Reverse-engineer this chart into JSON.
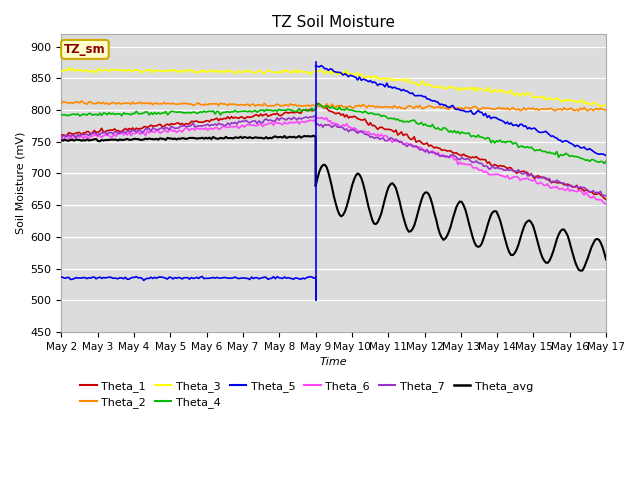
{
  "title": "TZ Soil Moisture",
  "ylabel": "Soil Moisture (mV)",
  "xlabel": "Time",
  "ylim": [
    450,
    920
  ],
  "background_color": "#ffffff",
  "plot_bg_color": "#dcdcdc",
  "legend_box_text": "TZ_sm",
  "legend_box_color": "#ffffcc",
  "legend_box_border": "#ccaa00",
  "x_ticks_labels": [
    "May 2",
    "May 3",
    "May 4",
    "May 5",
    "May 6",
    "May 7",
    "May 8",
    "May 9",
    "May 10",
    "May 11",
    "May 12",
    "May 13",
    "May 14",
    "May 15",
    "May 16",
    "May 17"
  ],
  "series": {
    "Theta_1": {
      "color": "#cc0000",
      "linewidth": 1.2
    },
    "Theta_2": {
      "color": "#ff8800",
      "linewidth": 1.2
    },
    "Theta_3": {
      "color": "#ffff00",
      "linewidth": 1.2
    },
    "Theta_4": {
      "color": "#00bb00",
      "linewidth": 1.2
    },
    "Theta_5": {
      "color": "#0000ee",
      "linewidth": 1.2
    },
    "Theta_6": {
      "color": "#ff44ff",
      "linewidth": 1.2
    },
    "Theta_7": {
      "color": "#9933cc",
      "linewidth": 1.2
    },
    "Theta_avg": {
      "color": "#000000",
      "linewidth": 1.5
    }
  }
}
